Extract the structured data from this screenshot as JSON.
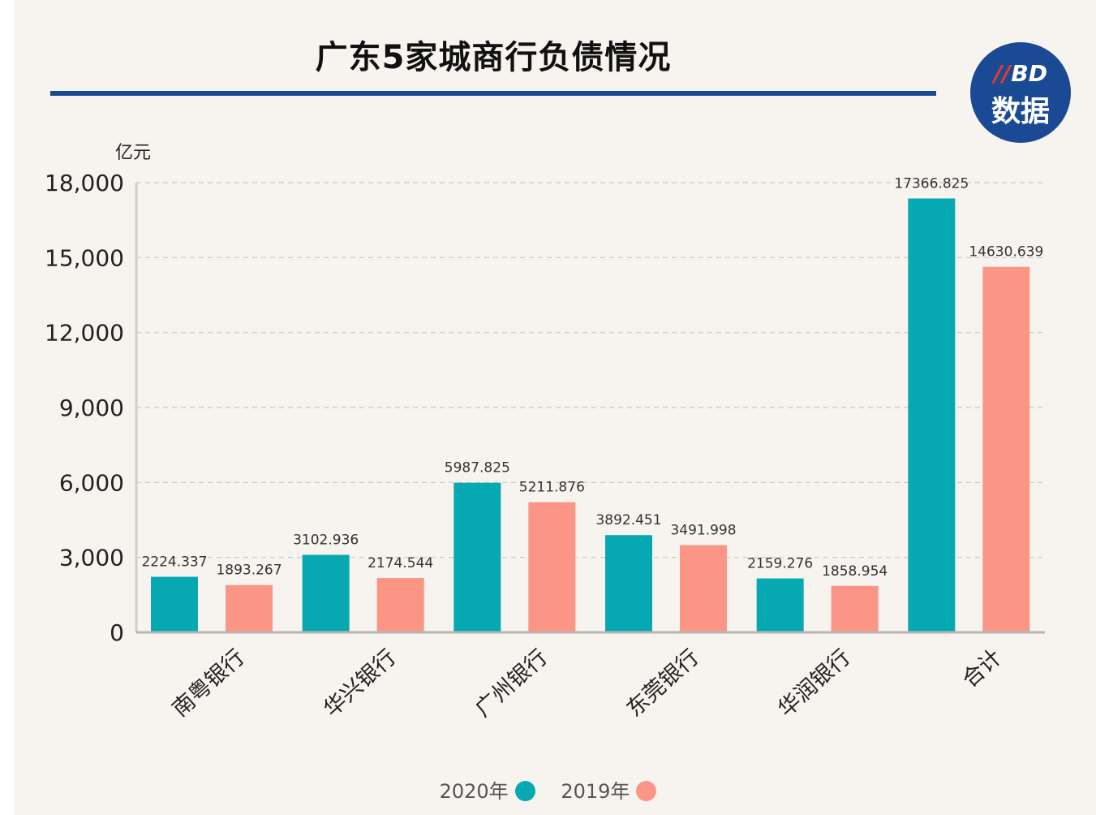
{
  "header": {
    "title": "广东5家城商行负债情况",
    "logo_top": "BD",
    "logo_bottom": "数据"
  },
  "colors": {
    "series_2020": "#06a9b1",
    "series_2019": "#fb9687",
    "rule": "#1b4a94"
  },
  "chart_data": {
    "type": "bar",
    "title": "广东5家城商行负债情况",
    "ylabel": "亿元",
    "xlabel": "",
    "ylim": [
      0,
      18000
    ],
    "yticks": [
      0,
      3000,
      6000,
      9000,
      12000,
      15000,
      18000
    ],
    "ytick_labels": [
      "0",
      "3,000",
      "6,000",
      "9,000",
      "12,000",
      "15,000",
      "18,000"
    ],
    "grid": true,
    "categories": [
      "南粤银行",
      "华兴银行",
      "广州银行",
      "东莞银行",
      "华润银行",
      "合计"
    ],
    "series": [
      {
        "name": "2020年",
        "values": [
          2224.337,
          3102.936,
          5987.825,
          3892.451,
          2159.276,
          17366.825
        ]
      },
      {
        "name": "2019年",
        "values": [
          1893.267,
          2174.544,
          5211.876,
          3491.998,
          1858.954,
          14630.639
        ]
      }
    ],
    "value_labels": [
      [
        "2224.337",
        "3102.936",
        "5987.825",
        "3892.451",
        "2159.276",
        "17366.825"
      ],
      [
        "1893.267",
        "2174.544",
        "5211.876",
        "3491.998",
        "1858.954",
        "14630.639"
      ]
    ],
    "legend_position": "bottom"
  },
  "legend": {
    "item_2020": "2020年",
    "item_2019": "2019年"
  }
}
